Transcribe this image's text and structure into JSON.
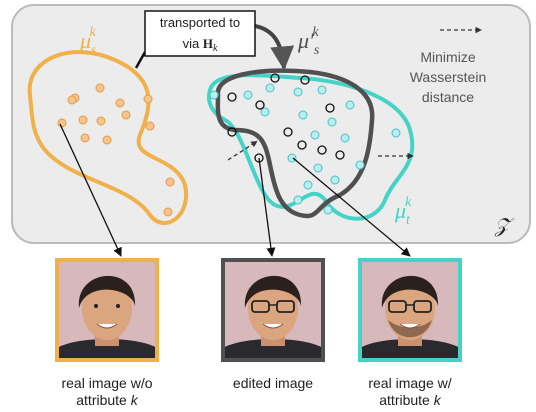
{
  "latent_space_label": "𝒵",
  "distributions": [
    {
      "symbol": "μ",
      "sub": "s",
      "sup": "k"
    },
    {
      "symbol": "μ′",
      "sub": "s",
      "sup": "k"
    },
    {
      "symbol": "μ",
      "sub": "t",
      "sup": "k"
    }
  ],
  "callout": {
    "line1": "transported to",
    "line2": "via",
    "operator": "H",
    "operator_sub": "k"
  },
  "legend": {
    "lines": [
      "Minimize",
      "Wasserstein",
      "distance"
    ]
  },
  "images": [
    {
      "caption_line1": "real image w/o",
      "caption_line2": "attribute",
      "caption_var": "k"
    },
    {
      "caption_line1": "edited image"
    },
    {
      "caption_line1": "real image w/",
      "caption_line2": "attribute",
      "caption_var": "k"
    }
  ]
}
